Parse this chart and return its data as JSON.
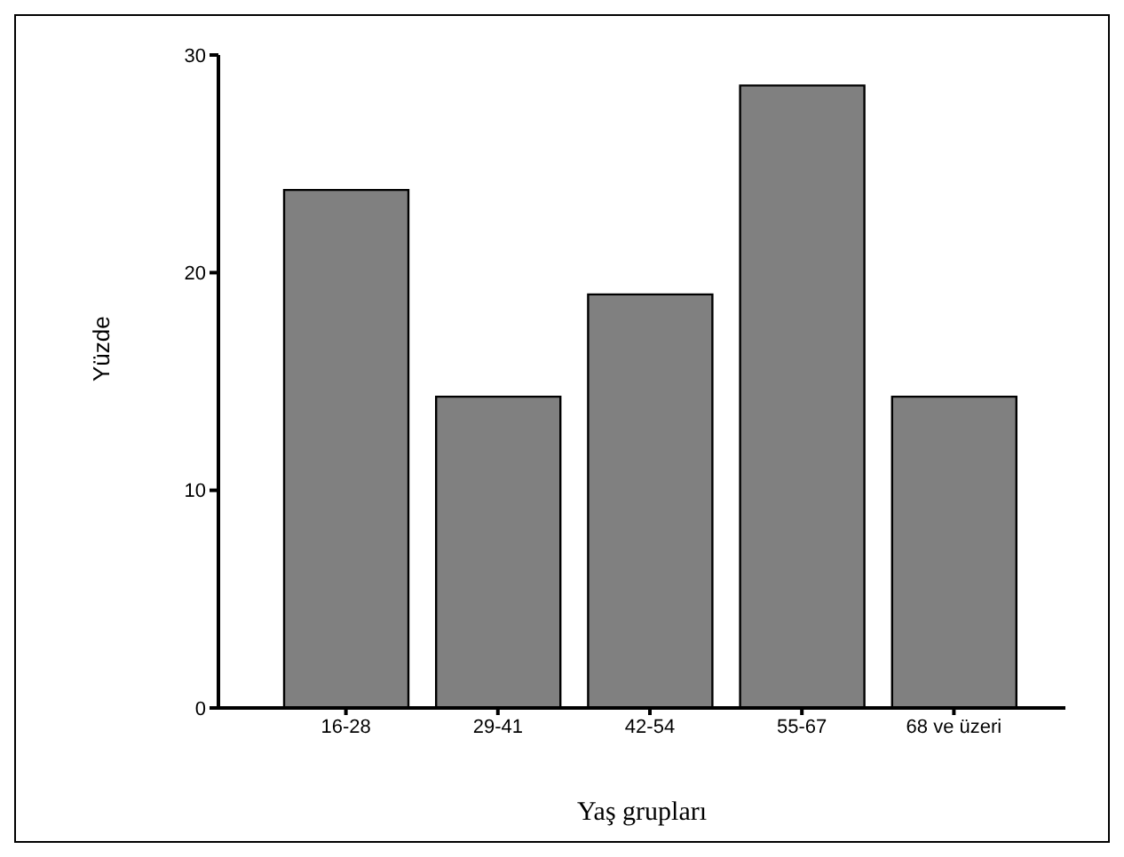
{
  "chart_data": {
    "type": "bar",
    "xlabel": "Yaş grupları",
    "ylabel": "Yüzde",
    "categories": [
      "16-28",
      "29-41",
      "42-54",
      "55-67",
      "68 ve üzeri"
    ],
    "values": [
      23.8,
      14.3,
      19.0,
      28.6,
      14.3
    ],
    "color": "#808080",
    "ylim": [
      0,
      30
    ],
    "yticks": [
      0,
      10,
      20,
      30
    ],
    "grid": false,
    "legend": false
  }
}
